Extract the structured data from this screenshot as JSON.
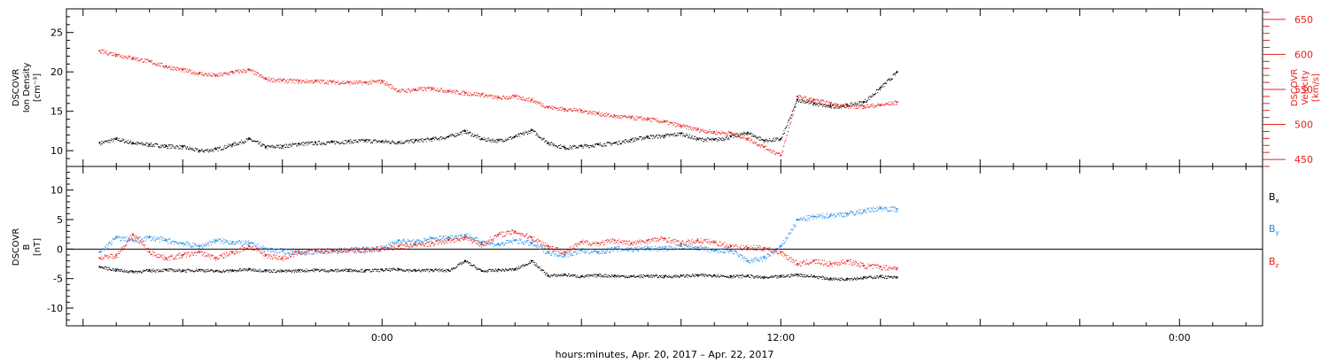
{
  "chart_data": [
    {
      "type": "scatter",
      "panel": "top",
      "y_left_label_lines": [
        "DSCOVR",
        "Ion Density",
        "[cm⁻³]"
      ],
      "y_right_label_lines": [
        "DSCOVR",
        "Velocity",
        "[km/s]"
      ],
      "ylim_left": [
        8,
        28
      ],
      "ylim_right": [
        440,
        665
      ],
      "y_left_ticks": [
        "10",
        "15",
        "20",
        "25"
      ],
      "y_right_ticks": [
        "450",
        "500",
        "550",
        "600",
        "650"
      ],
      "series": [
        {
          "axis": "left",
          "color": "#000000",
          "x": [
            -8.5,
            -8,
            -7.5,
            -7,
            -6.5,
            -6,
            -5.5,
            -5,
            -4.5,
            -4,
            -3.5,
            -3,
            -2.5,
            -2,
            -1.5,
            -1,
            -0.5,
            0,
            0.5,
            1,
            1.5,
            2,
            2.5,
            3,
            3.5,
            4,
            4.5,
            5,
            5.5,
            6,
            6.5,
            7,
            7.5,
            8,
            8.5,
            9,
            9.5,
            10,
            10.5,
            11,
            11.5,
            12,
            12.5,
            13,
            13.5,
            14,
            14.5,
            15,
            15.5
          ],
          "values": [
            11.0,
            11.5,
            11.0,
            10.8,
            10.6,
            10.5,
            10.0,
            10.2,
            10.8,
            11.5,
            10.5,
            10.6,
            10.9,
            11.0,
            11.1,
            11.2,
            11.3,
            11.2,
            11.1,
            11.3,
            11.5,
            11.8,
            12.5,
            11.5,
            11.3,
            11.8,
            12.6,
            11.0,
            10.4,
            10.6,
            10.8,
            11.0,
            11.4,
            11.8,
            11.9,
            12.2,
            11.5,
            11.4,
            11.8,
            12.3,
            11.3,
            11.5,
            16.5,
            16.0,
            15.6,
            15.8,
            16.2,
            18.0,
            20.0
          ]
        },
        {
          "axis": "right",
          "color": "#e8201c",
          "x": [
            -8.5,
            -8,
            -7.5,
            -7,
            -6.5,
            -6,
            -5.5,
            -5,
            -4.5,
            -4,
            -3.5,
            -3,
            -2.5,
            -2,
            -1.5,
            -1,
            -0.5,
            0,
            0.5,
            1,
            1.5,
            2,
            2.5,
            3,
            3.5,
            4,
            4.5,
            5,
            5.5,
            6,
            6.5,
            7,
            7.5,
            8,
            8.5,
            9,
            9.5,
            10,
            10.5,
            11,
            11.5,
            12,
            12.5,
            13,
            13.5,
            14,
            14.5,
            15,
            15.5
          ],
          "values": [
            605,
            600,
            595,
            590,
            583,
            578,
            573,
            570,
            575,
            578,
            565,
            563,
            562,
            562,
            561,
            560,
            560,
            562,
            548,
            550,
            552,
            548,
            545,
            543,
            538,
            540,
            535,
            525,
            522,
            520,
            516,
            512,
            510,
            508,
            504,
            498,
            493,
            489,
            488,
            480,
            468,
            456,
            540,
            535,
            530,
            526,
            526,
            528,
            532
          ]
        }
      ]
    },
    {
      "type": "scatter",
      "panel": "bottom",
      "y_label_lines": [
        "DSCOVR",
        "B",
        "[nT]"
      ],
      "ylim": [
        -13,
        14
      ],
      "y_ticks": [
        "10",
        "5",
        "0",
        "-5",
        "-10"
      ],
      "zero_line": true,
      "legend": [
        {
          "label": "B",
          "sub": "x",
          "color": "#000000"
        },
        {
          "label": "B",
          "sub": "y",
          "color": "#1e88e5"
        },
        {
          "label": "B",
          "sub": "z",
          "color": "#e8201c"
        }
      ],
      "series": [
        {
          "name": "Bx",
          "color": "#000000",
          "x": [
            -8.5,
            -8,
            -7.5,
            -7,
            -6.5,
            -6,
            -5.5,
            -5,
            -4.5,
            -4,
            -3.5,
            -3,
            -2.5,
            -2,
            -1.5,
            -1,
            -0.5,
            0,
            0.5,
            1,
            1.5,
            2,
            2.5,
            3,
            3.5,
            4,
            4.5,
            5,
            5.5,
            6,
            6.5,
            7,
            7.5,
            8,
            8.5,
            9,
            9.5,
            10,
            10.5,
            11,
            11.5,
            12,
            12.5,
            13,
            13.5,
            14,
            14.5,
            15,
            15.5
          ],
          "values": [
            -3,
            -3.5,
            -3.8,
            -3.6,
            -3.5,
            -3.6,
            -3.5,
            -3.7,
            -3.6,
            -3.4,
            -3.6,
            -3.7,
            -3.6,
            -3.5,
            -3.6,
            -3.5,
            -3.6,
            -3.5,
            -3.4,
            -3.6,
            -3.5,
            -3.6,
            -2.0,
            -3.7,
            -3.5,
            -3.4,
            -2.0,
            -4.5,
            -4.3,
            -4.6,
            -4.4,
            -4.5,
            -4.6,
            -4.5,
            -4.6,
            -4.5,
            -4.4,
            -4.4,
            -4.6,
            -4.5,
            -4.8,
            -4.6,
            -4.3,
            -4.6,
            -5.0,
            -5.0,
            -4.8,
            -4.6,
            -4.8
          ]
        },
        {
          "name": "By",
          "color": "#1e88e5",
          "x": [
            -8.5,
            -8,
            -7.5,
            -7,
            -6.5,
            -6,
            -5.5,
            -5,
            -4.5,
            -4,
            -3.5,
            -3,
            -2.5,
            -2,
            -1.5,
            -1,
            -0.5,
            0,
            0.5,
            1,
            1.5,
            2,
            2.5,
            3,
            3.5,
            4,
            4.5,
            5,
            5.5,
            6,
            6.5,
            7,
            7.5,
            8,
            8.5,
            9,
            9.5,
            10,
            10.5,
            11,
            11.5,
            12,
            12.5,
            13,
            13.5,
            14,
            14.5,
            15,
            15.5
          ],
          "values": [
            -0.5,
            2,
            1.5,
            2.0,
            1.5,
            1.0,
            0.5,
            1.5,
            1.2,
            1.0,
            0.0,
            -0.3,
            -0.5,
            -0.4,
            -0.3,
            -0.1,
            0.0,
            0.2,
            1.5,
            1.2,
            1.8,
            2.0,
            2.4,
            1.2,
            0.8,
            1.5,
            1.0,
            -0.5,
            -1.0,
            -0.2,
            -0.5,
            0.1,
            0.0,
            0.2,
            0.1,
            0.5,
            0.3,
            -0.3,
            -0.2,
            -2.0,
            -1.5,
            0.5,
            5.0,
            5.5,
            5.8,
            6.0,
            6.5,
            7.0,
            6.8
          ]
        },
        {
          "name": "Bz",
          "color": "#e8201c",
          "x": [
            -8.5,
            -8,
            -7.5,
            -7,
            -6.5,
            -6,
            -5.5,
            -5,
            -4.5,
            -4,
            -3.5,
            -3,
            -2.5,
            -2,
            -1.5,
            -1,
            -0.5,
            0,
            0.5,
            1,
            1.5,
            2,
            2.5,
            3,
            3.5,
            4,
            4.5,
            5,
            5.5,
            6,
            6.5,
            7,
            7.5,
            8,
            8.5,
            9,
            9.5,
            10,
            10.5,
            11,
            11.5,
            12,
            12.5,
            13,
            13.5,
            14,
            14.5,
            15,
            15.5
          ],
          "values": [
            -1.5,
            -1.0,
            2.5,
            -0.5,
            -1.5,
            -1.0,
            -0.5,
            -1.5,
            -0.5,
            0.5,
            -1.0,
            -1.5,
            -0.5,
            -0.3,
            -0.2,
            -0.2,
            -0.1,
            0.1,
            0.5,
            0.8,
            1.0,
            1.5,
            2.0,
            0.8,
            2.5,
            3.0,
            2.0,
            0.5,
            -0.5,
            1.2,
            1.0,
            1.5,
            1.0,
            1.5,
            1.8,
            1.0,
            1.5,
            1.2,
            0.5,
            0.2,
            0.2,
            -0.5,
            -2.5,
            -2.0,
            -2.5,
            -2.0,
            -2.8,
            -3.0,
            -3.2
          ]
        }
      ]
    }
  ],
  "x_axis": {
    "label": "hours:minutes, Apr. 20, 2017 – Apr. 22, 2017",
    "tick_labels": [
      {
        "hour": 0,
        "text": "0:00"
      },
      {
        "hour": 12,
        "text": "12:00"
      },
      {
        "hour": 24,
        "text": "0:00"
      }
    ],
    "range_hours": [
      -9.5,
      26.5
    ]
  }
}
